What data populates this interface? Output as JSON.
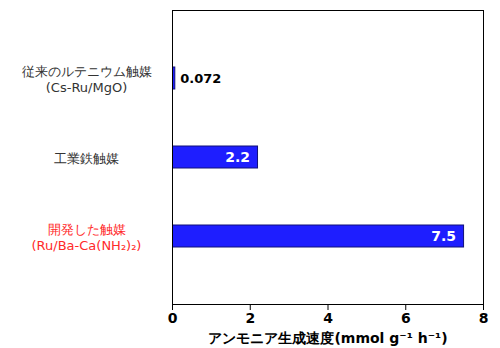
{
  "chart_data": {
    "type": "bar",
    "orientation": "horizontal",
    "categories": [
      "従来のルテニウム触媒\n(Cs-Ru/MgO)",
      "工業鉄触媒",
      "開発した触媒\n(Ru/Ba-Ca(NH₂)₂)"
    ],
    "values": [
      0.072,
      2.2,
      7.5
    ],
    "color": "#1e1eff",
    "xlabel": "アンモニア生成速度(mmol g⁻¹ h⁻¹)",
    "xlim": [
      0,
      8
    ],
    "xticks": [
      0,
      2,
      4,
      6,
      8
    ],
    "data_labels": true,
    "grid": false
  }
}
